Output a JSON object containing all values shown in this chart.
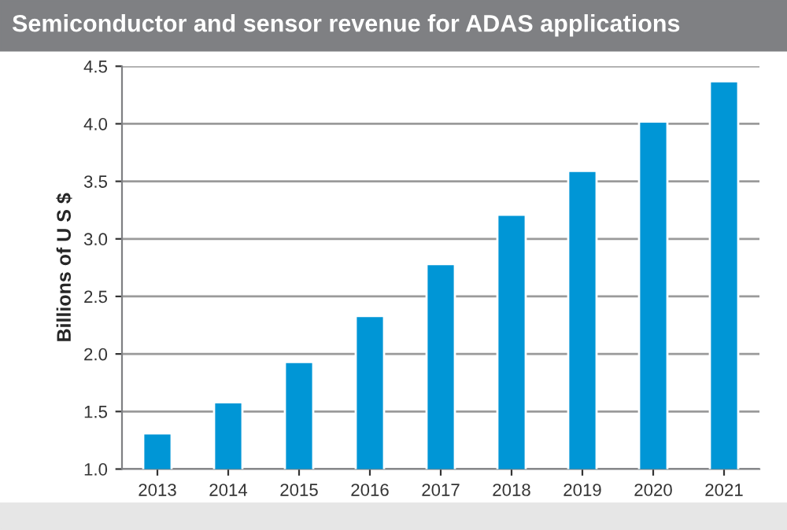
{
  "chart_data": {
    "type": "bar",
    "title": "Semiconductor and sensor revenue for ADAS applications",
    "ylabel": "Billions of U S $",
    "categories": [
      "2013",
      "2014",
      "2015",
      "2016",
      "2017",
      "2018",
      "2019",
      "2020",
      "2021"
    ],
    "values": [
      1.31,
      1.58,
      1.93,
      2.33,
      2.78,
      3.21,
      3.59,
      4.02,
      4.37
    ],
    "color": "#0096d6",
    "ylim": [
      1.0,
      4.5
    ],
    "yticks": [
      {
        "value": 1.0,
        "label": "1.0"
      },
      {
        "value": 1.5,
        "label": "1.5"
      },
      {
        "value": 2.0,
        "label": "2.0"
      },
      {
        "value": 2.5,
        "label": "2.5"
      },
      {
        "value": 3.0,
        "label": "3.0"
      },
      {
        "value": 3.5,
        "label": "3.5"
      },
      {
        "value": 4.0,
        "label": "4.0"
      },
      {
        "value": 4.5,
        "label": "4.5"
      }
    ],
    "grid": "y"
  }
}
